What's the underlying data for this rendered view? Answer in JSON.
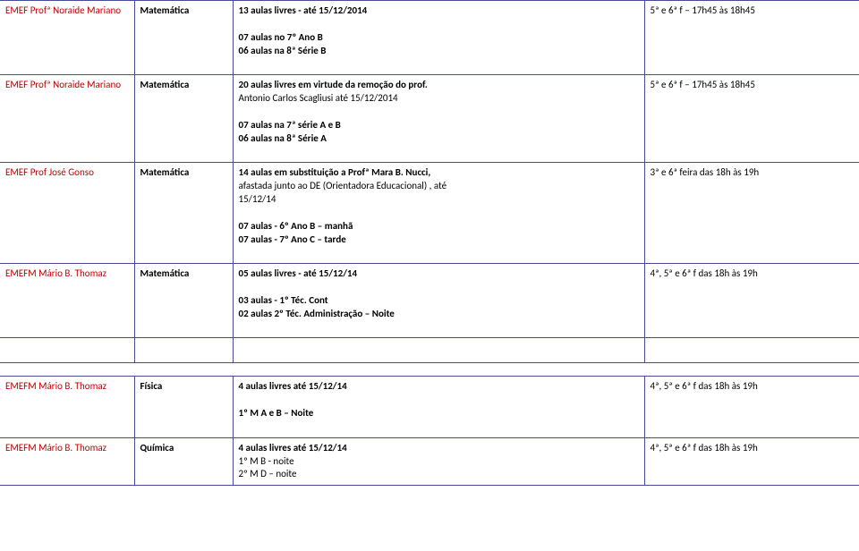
{
  "border_color": "#4a4a9a",
  "school_color": "#c00000",
  "rows": [
    {
      "school": "EMEF Profª Noraide Mariano",
      "subject": "Matemática",
      "title": "13 aulas livres -  até 15/12/2014",
      "lines": [
        "07 aulas no 7º Ano  B",
        "06 aulas na 8ª Série B"
      ],
      "schedule": "5ª e 6ª f – 17h45 às 18h45"
    },
    {
      "school": "EMEF Profª Noraide Mariano",
      "subject": "Matemática",
      "title": "20 aulas livres em virtude da remoção do prof.",
      "title_line2": "Antonio Carlos Scagliusi  até 15/12/2014",
      "lines": [
        " 07 aulas na 7ª série A e  B",
        "06 aulas na 8ª Série A"
      ],
      "schedule": "5ª e 6ª f – 17h45 às 18h45"
    },
    {
      "school": "EMEF Prof José Gonso",
      "subject": "Matemática",
      "title": "14 aulas  em substituição a Profª Mara B. Nucci,",
      "title_lines": [
        "afastada junto ao DE (Orientadora Educacional) , até",
        "15/12/14"
      ],
      "lines": [
        "07 aulas - 6º Ano B – manhã",
        "07 aulas - 7º Ano C – tarde"
      ],
      "schedule": "3ª e 6ª feira das 18h às 19h"
    },
    {
      "school": "EMEFM Mário B. Thomaz",
      "subject": "Matemática",
      "title": "05 aulas livres -  até 15/12/14",
      "lines": [
        "03 aulas - 1º Téc. Cont",
        "  02 aulas 2º Téc. Administração – Noite"
      ],
      "schedule": "4ª, 5ª e 6ª f das 18h às 19h"
    },
    {
      "school": "EMEFM Mário B. Thomaz",
      "subject": "Física",
      "title": "4 aulas livres até 15/12/14",
      "lines": [
        "1º M A e B – Noite"
      ],
      "schedule": "4ª, 5ª e 6ª f das 18h às 19h"
    },
    {
      "school": "EMEFM Mário B. Thomaz",
      "subject": "Química",
      "title": "4 aulas livres até 15/12/14",
      "title_lines_plain": [
        "1º M  B - noite",
        "2º M D – noite"
      ],
      "schedule": "4ª, 5ª e 6ª f  das 18h às 19h"
    }
  ]
}
